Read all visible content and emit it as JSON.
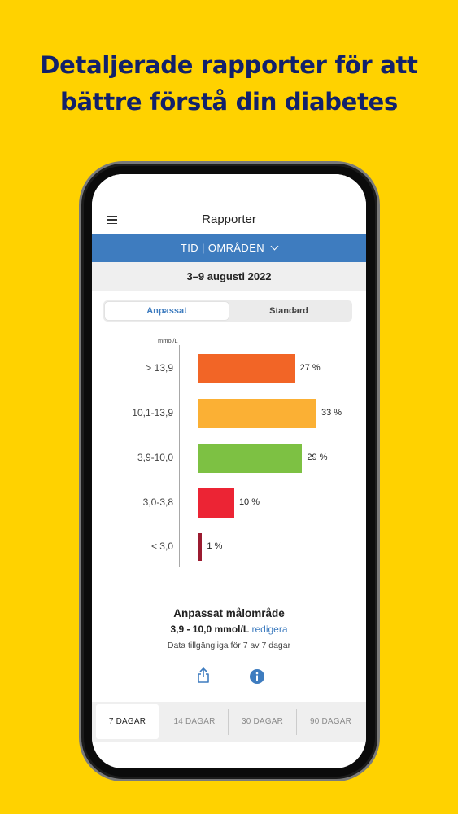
{
  "headline": {
    "line1": "Detaljerade rapporter för att",
    "line2": "bättre förstå din diabetes"
  },
  "app": {
    "title": "Rapporter",
    "menu_icon": "hamburger-menu-icon",
    "nav_label": "TID | OMRÅDEN",
    "nav_icon": "chevron-down-icon",
    "date_range": "3–9 augusti 2022"
  },
  "segment": {
    "active": "Anpassat",
    "inactive": "Standard"
  },
  "chart_data": {
    "type": "bar",
    "orientation": "horizontal",
    "unit_label": "mmol/L",
    "categories": [
      "> 13,9",
      "10,1-13,9",
      "3,9-10,0",
      "3,0-3,8",
      "< 3,0"
    ],
    "values": [
      27,
      33,
      29,
      10,
      1
    ],
    "value_labels": [
      "27 %",
      "33 %",
      "29 %",
      "10 %",
      "1 %"
    ],
    "colors": [
      "#F26526",
      "#FBB034",
      "#7DC143",
      "#EC2434",
      "#9B1B30"
    ],
    "xlim": [
      0,
      33
    ]
  },
  "summary": {
    "title": "Anpassat målområde",
    "range": "3,9 - 10,0 mmol/L",
    "edit_link": "redigera",
    "availability": "Data tillgängliga för 7 av 7 dagar"
  },
  "actions": {
    "share_icon": "share-icon",
    "info_icon": "info-icon"
  },
  "tabs": [
    "7  DAGAR",
    "14 DAGAR",
    "30 DAGAR",
    "90 DAGAR"
  ],
  "active_tab_index": 0,
  "colors": {
    "background": "#FFD200",
    "headline": "#12216B",
    "accent": "#3E7CBF"
  }
}
